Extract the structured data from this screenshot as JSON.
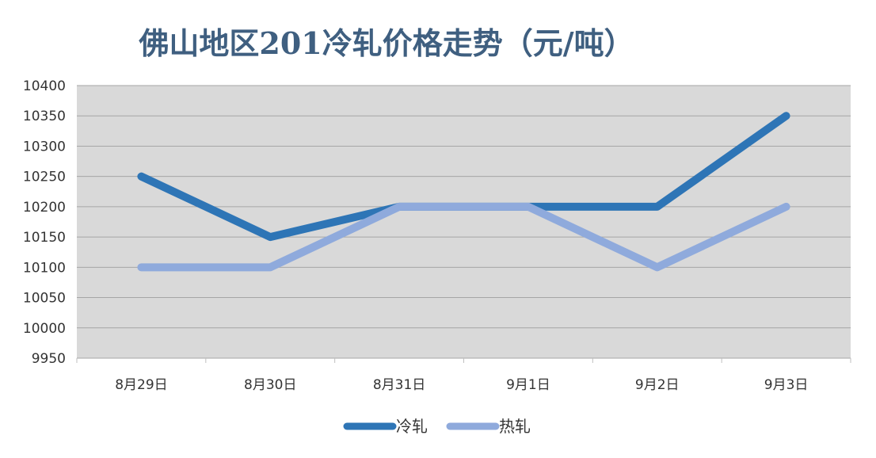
{
  "chart_data": {
    "type": "line",
    "title": "佛山地区201冷轧价格走势（元/吨）",
    "xlabel": "",
    "ylabel": "",
    "categories": [
      "8月29日",
      "8月30日",
      "8月31日",
      "9月1日",
      "9月2日",
      "9月3日"
    ],
    "ylim": [
      9950,
      10400
    ],
    "yticks": [
      9950,
      10000,
      10050,
      10100,
      10150,
      10200,
      10250,
      10300,
      10350,
      10400
    ],
    "grid": true,
    "legend": "bottom",
    "series": [
      {
        "name": "冷轧",
        "values": [
          10250,
          10150,
          10200,
          10200,
          10200,
          10350
        ],
        "color": "#2e75b6"
      },
      {
        "name": "热轧",
        "values": [
          10100,
          10100,
          10200,
          10200,
          10100,
          10200
        ],
        "color": "#8faadc"
      }
    ]
  },
  "colors": {
    "plot_background": "#d9d9d9",
    "gridline": "#a6a6a6",
    "title": "#3f5f80"
  }
}
